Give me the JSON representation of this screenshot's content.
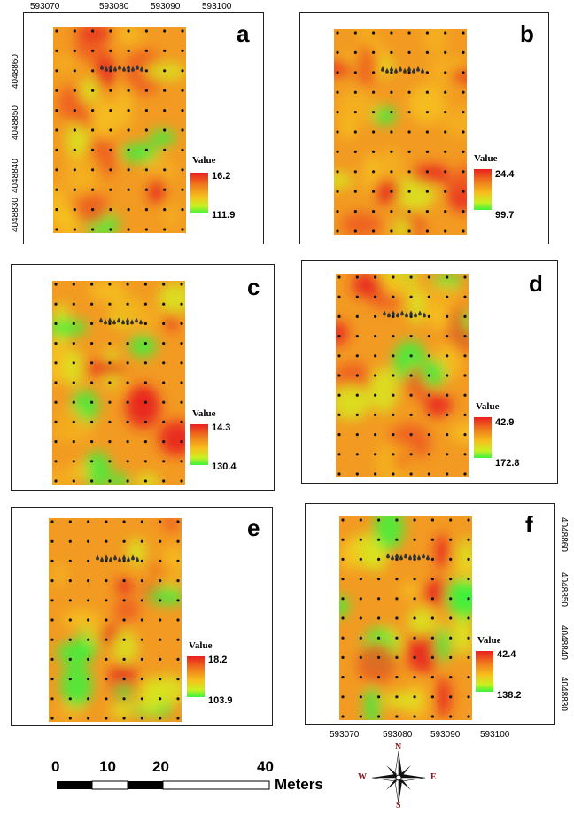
{
  "panels": [
    {
      "id": "a",
      "letter": "a",
      "legend_title": "Value",
      "legend_high": "16.2",
      "legend_low": "111.9"
    },
    {
      "id": "b",
      "letter": "b",
      "legend_title": "Value",
      "legend_high": "24.4",
      "legend_low": "99.7"
    },
    {
      "id": "c",
      "letter": "c",
      "legend_title": "Value",
      "legend_high": "14.3",
      "legend_low": "130.4"
    },
    {
      "id": "d",
      "letter": "d",
      "legend_title": "Value",
      "legend_high": "42.9",
      "legend_low": "172.8"
    },
    {
      "id": "e",
      "letter": "e",
      "legend_title": "Value",
      "legend_high": "18.2",
      "legend_low": "103.9"
    },
    {
      "id": "f",
      "letter": "f",
      "legend_title": "Value",
      "legend_high": "42.4",
      "legend_low": "138.2"
    }
  ],
  "axes": {
    "top_x_labels": [
      "593070",
      "593080",
      "593090",
      "593100"
    ],
    "left_y_labels": [
      "4048860",
      "4048850",
      "4048840",
      "4048830"
    ],
    "bottom_x_labels": [
      "593070",
      "593080",
      "593090",
      "593100"
    ],
    "right_y_labels": [
      "4048860",
      "4048850",
      "4048840",
      "4048830"
    ]
  },
  "scale_bar": {
    "labels": [
      "0",
      "10",
      "20",
      "40"
    ],
    "unit": "Meters"
  },
  "compass": {
    "n": "N",
    "s": "S",
    "e": "E",
    "w": "W"
  },
  "colors": {
    "high": "#e8201e",
    "mid": "#f6c21c",
    "low": "#3cf23c",
    "point": "#111111"
  }
}
